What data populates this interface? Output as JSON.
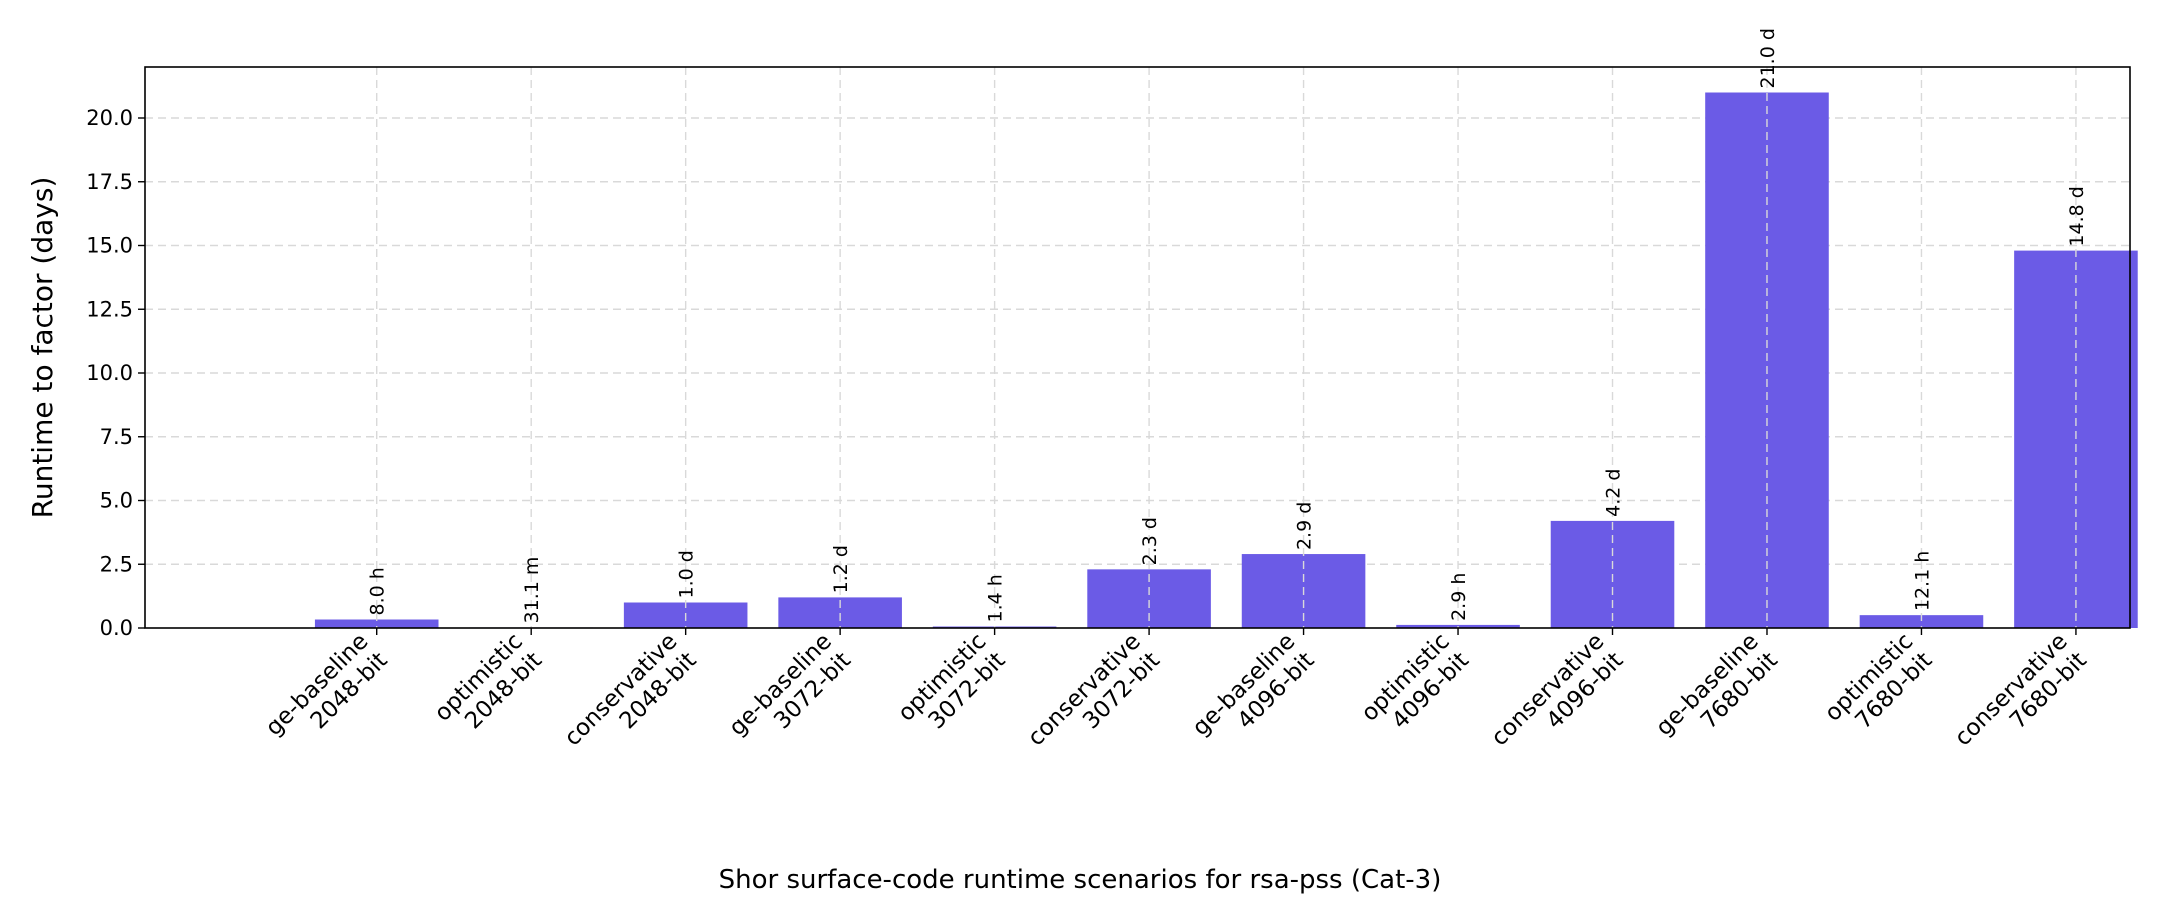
{
  "chart_data": {
    "type": "bar",
    "title": "",
    "xlabel": "",
    "ylabel": "Runtime to factor (days)",
    "caption": "Shor surface-code runtime scenarios for rsa-pss (Cat-3)",
    "ylim": [
      0,
      22
    ],
    "yticks": [
      "0.0",
      "2.5",
      "5.0",
      "7.5",
      "10.0",
      "12.5",
      "15.0",
      "17.5",
      "20.0"
    ],
    "grid": true,
    "bar_color": "#6b5be6",
    "categories": [
      [
        "ge-baseline",
        "2048-bit"
      ],
      [
        "optimistic",
        "2048-bit"
      ],
      [
        "conservative",
        "2048-bit"
      ],
      [
        "ge-baseline",
        "3072-bit"
      ],
      [
        "optimistic",
        "3072-bit"
      ],
      [
        "conservative",
        "3072-bit"
      ],
      [
        "ge-baseline",
        "4096-bit"
      ],
      [
        "optimistic",
        "4096-bit"
      ],
      [
        "conservative",
        "4096-bit"
      ],
      [
        "ge-baseline",
        "7680-bit"
      ],
      [
        "optimistic",
        "7680-bit"
      ],
      [
        "conservative",
        "7680-bit"
      ]
    ],
    "values": [
      0.333,
      0.0216,
      1.0,
      1.2,
      0.0583,
      2.3,
      2.9,
      0.121,
      4.2,
      21.0,
      0.504,
      14.8
    ],
    "value_labels": [
      "8.0 h",
      "31.1 m",
      "1.0 d",
      "1.2 d",
      "1.4 h",
      "2.3 d",
      "2.9 d",
      "2.9 h",
      "4.2 d",
      "21.0 d",
      "12.1 h",
      "14.8 d"
    ]
  }
}
